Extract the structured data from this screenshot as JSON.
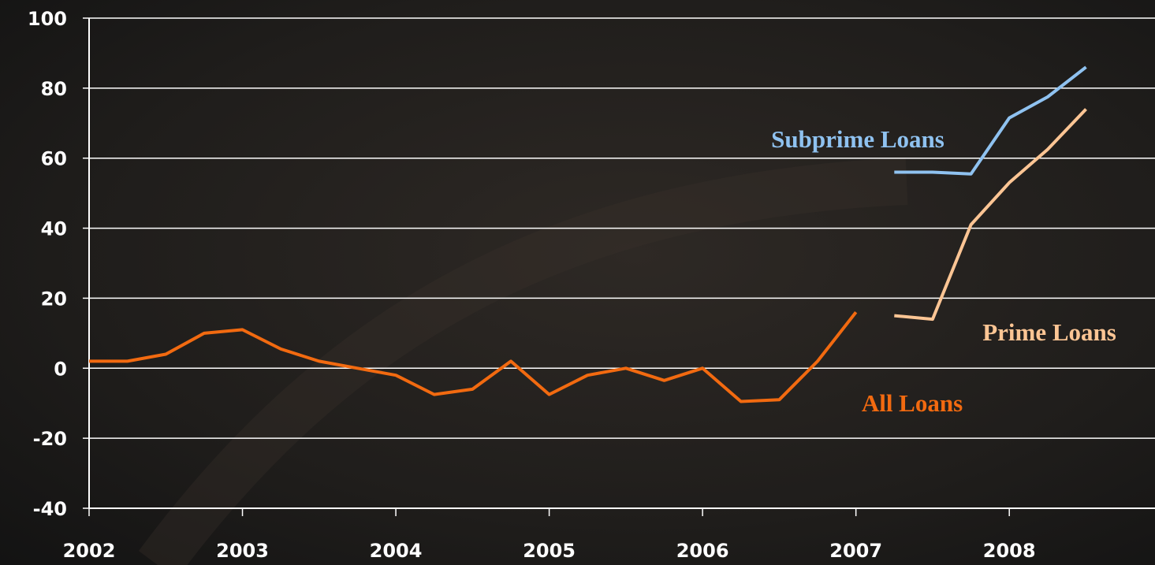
{
  "chart_data": {
    "type": "line",
    "x": [
      2002,
      2002.25,
      2002.5,
      2002.75,
      2003,
      2003.25,
      2003.5,
      2003.75,
      2004,
      2004.25,
      2004.5,
      2004.75,
      2005,
      2005.25,
      2005.5,
      2005.75,
      2006,
      2006.25,
      2006.5,
      2006.75,
      2007,
      2007.25,
      2007.5,
      2007.75,
      2008,
      2008.25,
      2008.5
    ],
    "series": [
      {
        "name": "All Loans",
        "color": "#f26a10",
        "values": [
          2,
          2,
          4,
          10,
          11,
          5.5,
          2,
          0,
          -2,
          -7.5,
          -6,
          2,
          -7.5,
          -2,
          0,
          -3.5,
          0,
          -9.5,
          -9,
          2,
          16,
          null,
          null,
          null,
          null,
          null,
          null
        ]
      },
      {
        "name": "Prime Loans",
        "color": "#fcc594",
        "values": [
          null,
          null,
          null,
          null,
          null,
          null,
          null,
          null,
          null,
          null,
          null,
          null,
          null,
          null,
          null,
          null,
          null,
          null,
          null,
          null,
          null,
          15,
          14,
          41,
          53,
          62.5,
          74
        ]
      },
      {
        "name": "Subprime Loans",
        "color": "#8fc2f0",
        "values": [
          null,
          null,
          null,
          null,
          null,
          null,
          null,
          null,
          null,
          null,
          null,
          null,
          null,
          null,
          null,
          null,
          null,
          null,
          null,
          null,
          null,
          56,
          56,
          55.5,
          71.5,
          77.5,
          86
        ]
      }
    ],
    "xlim": [
      2002,
      2008.95
    ],
    "xticks": [
      2002,
      2003,
      2004,
      2005,
      2006,
      2007,
      2008
    ],
    "ylim": [
      -40,
      100
    ],
    "yticks": [
      -40,
      -20,
      0,
      20,
      40,
      60,
      80,
      100
    ],
    "grid": true
  }
}
